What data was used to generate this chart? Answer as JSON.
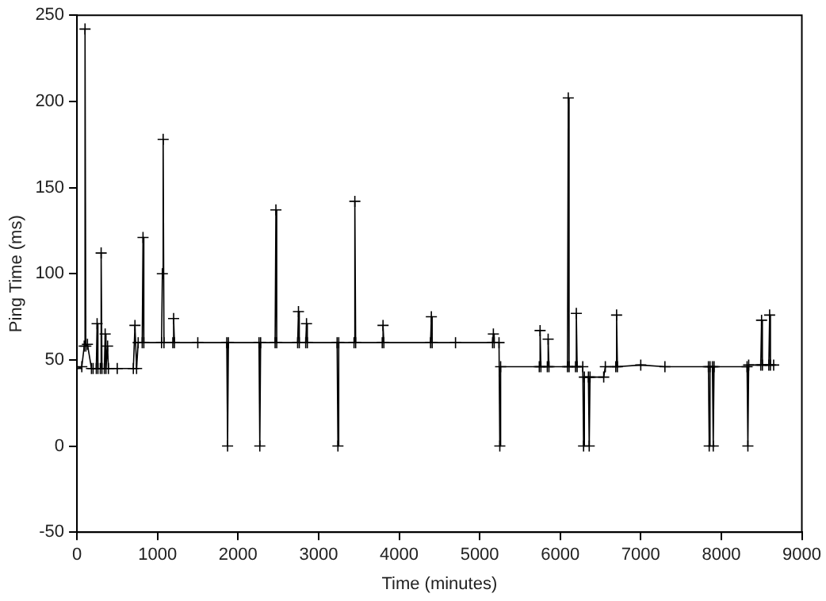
{
  "chart_data": {
    "type": "line",
    "xlabel": "Time (minutes)",
    "ylabel": "Ping Time (ms)",
    "xlim": [
      0,
      9000
    ],
    "xticks": [
      0,
      1000,
      2000,
      3000,
      4000,
      5000,
      6000,
      7000,
      8000,
      9000
    ],
    "ylim": [
      -50,
      250
    ],
    "yticks": [
      -50,
      0,
      50,
      100,
      150,
      200,
      250
    ],
    "grid": false,
    "legend": false,
    "marker": "cross",
    "line_style": "solid",
    "series": [
      {
        "color": "#000000",
        "x": [
          0,
          60,
          90,
          100,
          110,
          130,
          180,
          200,
          240,
          250,
          260,
          290,
          300,
          310,
          340,
          350,
          360,
          380,
          390,
          500,
          700,
          720,
          740,
          760,
          810,
          820,
          830,
          1050,
          1060,
          1070,
          1080,
          1190,
          1200,
          1210,
          1500,
          1860,
          1870,
          1880,
          2260,
          2270,
          2280,
          2460,
          2470,
          2480,
          2740,
          2750,
          2760,
          2840,
          2850,
          2860,
          3230,
          3240,
          3250,
          3440,
          3450,
          3460,
          3790,
          3800,
          3810,
          4390,
          4400,
          4410,
          4700,
          5160,
          5170,
          5180,
          5240,
          5250,
          5260,
          5740,
          5750,
          5760,
          5840,
          5850,
          5860,
          6090,
          6100,
          6110,
          6190,
          6200,
          6210,
          6280,
          6290,
          6300,
          6350,
          6360,
          6370,
          6540,
          6560,
          6690,
          6700,
          6710,
          7000,
          7300,
          7840,
          7850,
          7860,
          7890,
          7900,
          7910,
          8320,
          8330,
          8340,
          8490,
          8500,
          8510,
          8590,
          8600,
          8610,
          8650
        ],
        "values": [
          45,
          46,
          58,
          242,
          58,
          59,
          45,
          45,
          45,
          71,
          45,
          45,
          112,
          45,
          45,
          65,
          45,
          58,
          45,
          45,
          45,
          70,
          45,
          60,
          60,
          121,
          60,
          60,
          100,
          178,
          60,
          60,
          74,
          60,
          60,
          60,
          0,
          60,
          60,
          0,
          60,
          60,
          137,
          60,
          60,
          78,
          60,
          60,
          71,
          60,
          60,
          0,
          60,
          60,
          142,
          60,
          60,
          70,
          60,
          60,
          75,
          60,
          60,
          60,
          65,
          60,
          60,
          0,
          46,
          46,
          67,
          46,
          46,
          62,
          46,
          46,
          202,
          46,
          46,
          77,
          46,
          46,
          0,
          40,
          40,
          0,
          40,
          40,
          46,
          46,
          76,
          46,
          47,
          46,
          46,
          0,
          46,
          46,
          0,
          46,
          46,
          0,
          47,
          47,
          73,
          47,
          47,
          76,
          47,
          47
        ]
      }
    ]
  }
}
